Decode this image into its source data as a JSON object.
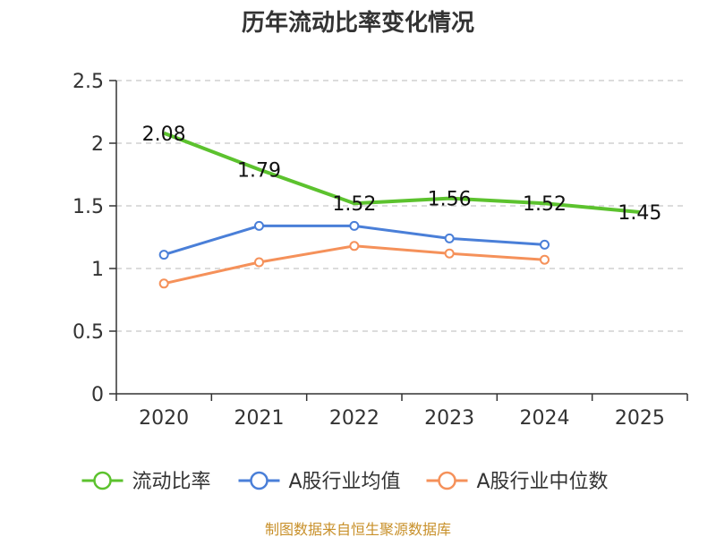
{
  "chart_data": {
    "type": "line",
    "title": "历年流动比率变化情况",
    "categories": [
      "2020",
      "2021",
      "2022",
      "2023",
      "2024",
      "2025"
    ],
    "ylim": [
      0,
      2.5
    ],
    "yticks": [
      0,
      0.5,
      1,
      1.5,
      2,
      2.5
    ],
    "ytick_labels": [
      "0",
      "0.5",
      "1",
      "1.5",
      "2",
      "2.5"
    ],
    "grid": true,
    "legend_position": "bottom",
    "series": [
      {
        "name": "流动比率",
        "color": "#5cc22e",
        "markers": false,
        "values": [
          2.08,
          1.79,
          1.52,
          1.56,
          1.52,
          1.45
        ],
        "labels": [
          "2.08",
          "1.79",
          "1.52",
          "1.56",
          "1.52",
          "1.45"
        ]
      },
      {
        "name": "A股行业均值",
        "color": "#4a7fd8",
        "markers": true,
        "values": [
          1.11,
          1.34,
          1.34,
          1.24,
          1.19,
          null
        ]
      },
      {
        "name": "A股行业中位数",
        "color": "#f5915a",
        "markers": true,
        "values": [
          0.88,
          1.05,
          1.18,
          1.12,
          1.07,
          null
        ]
      }
    ],
    "source": "制图数据来自恒生聚源数据库"
  }
}
